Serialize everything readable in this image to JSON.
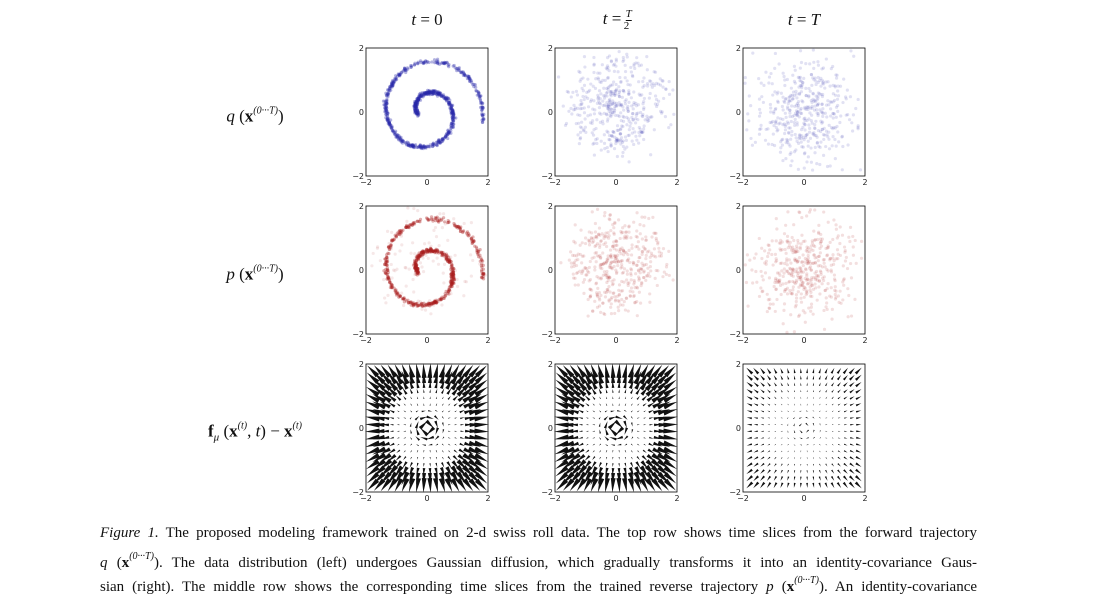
{
  "columns": [
    [
      {
        "t": "t",
        "s": "i"
      },
      {
        "t": " = "
      },
      {
        "t": "0"
      }
    ],
    [
      {
        "t": "t",
        "s": "i"
      },
      {
        "t": " = "
      },
      {
        "t": "T",
        "s": "num"
      },
      {
        "t": "2",
        "s": "den"
      }
    ],
    [
      {
        "t": "t",
        "s": "i"
      },
      {
        "t": " = "
      },
      {
        "t": "T",
        "s": "i"
      }
    ]
  ],
  "rows": [
    [
      {
        "t": "q",
        "s": "i"
      },
      {
        "t": " ("
      },
      {
        "t": "x",
        "s": "b"
      },
      {
        "t": "(0···T)",
        "s": "sup"
      },
      {
        "t": ")"
      }
    ],
    [
      {
        "t": "p",
        "s": "i"
      },
      {
        "t": " ("
      },
      {
        "t": "x",
        "s": "b"
      },
      {
        "t": "(0···T)",
        "s": "sup"
      },
      {
        "t": ")"
      }
    ],
    [
      {
        "t": "f",
        "s": "b"
      },
      {
        "t": "μ",
        "s": "sub"
      },
      {
        "t": " ("
      },
      {
        "t": "x",
        "s": "b"
      },
      {
        "t": "(t)",
        "s": "sup"
      },
      {
        "t": ", "
      },
      {
        "t": "t",
        "s": "i"
      },
      {
        "t": ") − "
      },
      {
        "t": "x",
        "s": "b"
      },
      {
        "t": "(t)",
        "s": "sup"
      }
    ]
  ],
  "ticks": [
    "−2",
    "0",
    "2"
  ],
  "caption": [
    [
      {
        "t": "Figure 1.",
        "s": "i"
      },
      {
        "t": " The proposed modeling framework trained on 2-d swiss roll data. The top row shows time slices from the forward trajectory"
      }
    ],
    [
      {
        "t": "q",
        "s": "i"
      },
      {
        "t": " ("
      },
      {
        "t": "x",
        "s": "b"
      },
      {
        "t": "(0···T)",
        "s": "sup"
      },
      {
        "t": ")"
      },
      {
        "t": ". The data distribution (left) undergoes Gaussian diffusion, which gradually transforms it into an identity-covariance Gaus-"
      }
    ],
    [
      {
        "t": "sian (right). The middle row shows the corresponding time slices from the trained reverse trajectory "
      },
      {
        "t": "p",
        "s": "i"
      },
      {
        "t": " ("
      },
      {
        "t": "x",
        "s": "b"
      },
      {
        "t": "(0···T)",
        "s": "sup"
      },
      {
        "t": ")"
      },
      {
        "t": ". An identity-covariance"
      }
    ]
  ]
}
